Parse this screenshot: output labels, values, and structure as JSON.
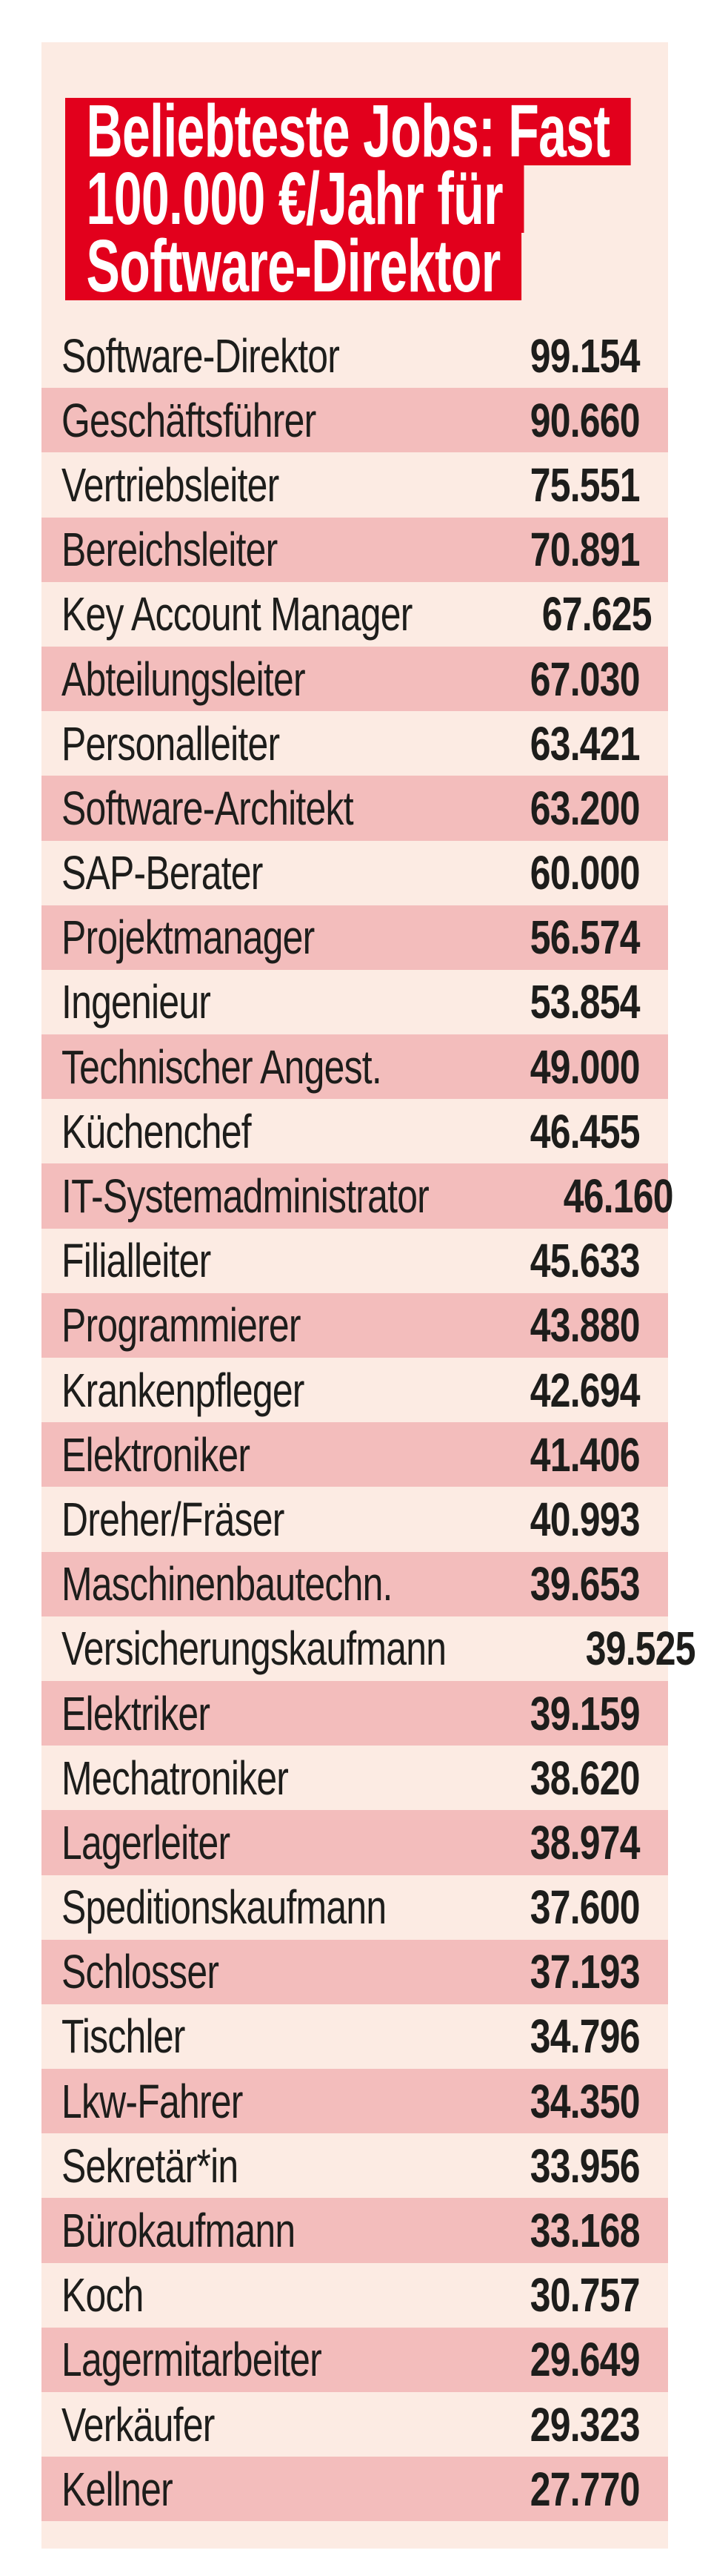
{
  "colors": {
    "accent_red": "#e2001c",
    "row_light": "#fcebe3",
    "row_dark": "#f3bdbc",
    "text_dark": "#1d1d1b",
    "title_text": "#ffffff",
    "page_background": "#ffffff"
  },
  "title": {
    "lines": [
      "Beliebteste Jobs: Fast",
      "100.000 €/Jahr für",
      "Software-Direktor"
    ]
  },
  "table": {
    "rows": [
      {
        "job": "Software-Direktor",
        "salary": "99.154"
      },
      {
        "job": "Geschäftsführer",
        "salary": "90.660"
      },
      {
        "job": "Vertriebsleiter",
        "salary": "75.551"
      },
      {
        "job": "Bereichsleiter",
        "salary": "70.891"
      },
      {
        "job": "Key Account Manager",
        "salary": "67.625"
      },
      {
        "job": "Abteilungsleiter",
        "salary": "67.030"
      },
      {
        "job": "Personalleiter",
        "salary": "63.421"
      },
      {
        "job": "Software-Architekt",
        "salary": "63.200"
      },
      {
        "job": "SAP-Berater",
        "salary": "60.000"
      },
      {
        "job": "Projektmanager",
        "salary": "56.574"
      },
      {
        "job": "Ingenieur",
        "salary": "53.854"
      },
      {
        "job": "Technischer Angest.",
        "salary": "49.000"
      },
      {
        "job": "Küchenchef",
        "salary": "46.455"
      },
      {
        "job": "IT-Systemadministrator",
        "salary": "46.160"
      },
      {
        "job": "Filialleiter",
        "salary": "45.633"
      },
      {
        "job": "Programmierer",
        "salary": "43.880"
      },
      {
        "job": "Krankenpfleger",
        "salary": "42.694"
      },
      {
        "job": "Elektroniker",
        "salary": "41.406"
      },
      {
        "job": "Dreher/Fräser",
        "salary": "40.993"
      },
      {
        "job": "Maschinenbautechn.",
        "salary": "39.653"
      },
      {
        "job": "Versicherungskaufmann",
        "salary": "39.525"
      },
      {
        "job": "Elektriker",
        "salary": "39.159"
      },
      {
        "job": "Mechatroniker",
        "salary": "38.620"
      },
      {
        "job": "Lagerleiter",
        "salary": "38.974"
      },
      {
        "job": "Speditionskaufmann",
        "salary": "37.600"
      },
      {
        "job": "Schlosser",
        "salary": "37.193"
      },
      {
        "job": "Tischler",
        "salary": "34.796"
      },
      {
        "job": "Lkw-Fahrer",
        "salary": "34.350"
      },
      {
        "job": "Sekretär*in",
        "salary": "33.956"
      },
      {
        "job": "Bürokaufmann",
        "salary": "33.168"
      },
      {
        "job": "Koch",
        "salary": "30.757"
      },
      {
        "job": "Lagermitarbeiter",
        "salary": "29.649"
      },
      {
        "job": "Verkäufer",
        "salary": "29.323"
      },
      {
        "job": "Kellner",
        "salary": "27.770"
      }
    ]
  },
  "chart_data": {
    "type": "table",
    "title": "Beliebteste Jobs: Fast 100.000 €/Jahr für Software-Direktor",
    "unit": "€/Jahr",
    "categories": [
      "Software-Direktor",
      "Geschäftsführer",
      "Vertriebsleiter",
      "Bereichsleiter",
      "Key Account Manager",
      "Abteilungsleiter",
      "Personalleiter",
      "Software-Architekt",
      "SAP-Berater",
      "Projektmanager",
      "Ingenieur",
      "Technischer Angest.",
      "Küchenchef",
      "IT-Systemadministrator",
      "Filialleiter",
      "Programmierer",
      "Krankenpfleger",
      "Elektroniker",
      "Dreher/Fräser",
      "Maschinenbautechn.",
      "Versicherungskaufmann",
      "Elektriker",
      "Mechatroniker",
      "Lagerleiter",
      "Speditionskaufmann",
      "Schlosser",
      "Tischler",
      "Lkw-Fahrer",
      "Sekretär*in",
      "Bürokaufmann",
      "Koch",
      "Lagermitarbeiter",
      "Verkäufer",
      "Kellner"
    ],
    "values": [
      99154,
      90660,
      75551,
      70891,
      67625,
      67030,
      63421,
      63200,
      60000,
      56574,
      53854,
      49000,
      46455,
      46160,
      45633,
      43880,
      42694,
      41406,
      40993,
      39653,
      39525,
      39159,
      38620,
      38974,
      37600,
      37193,
      34796,
      34350,
      33956,
      33168,
      30757,
      29649,
      29323,
      27770
    ],
    "layout": {
      "zebra_rows": true,
      "value_alignment": "right",
      "grid": false,
      "legend": "none"
    }
  }
}
